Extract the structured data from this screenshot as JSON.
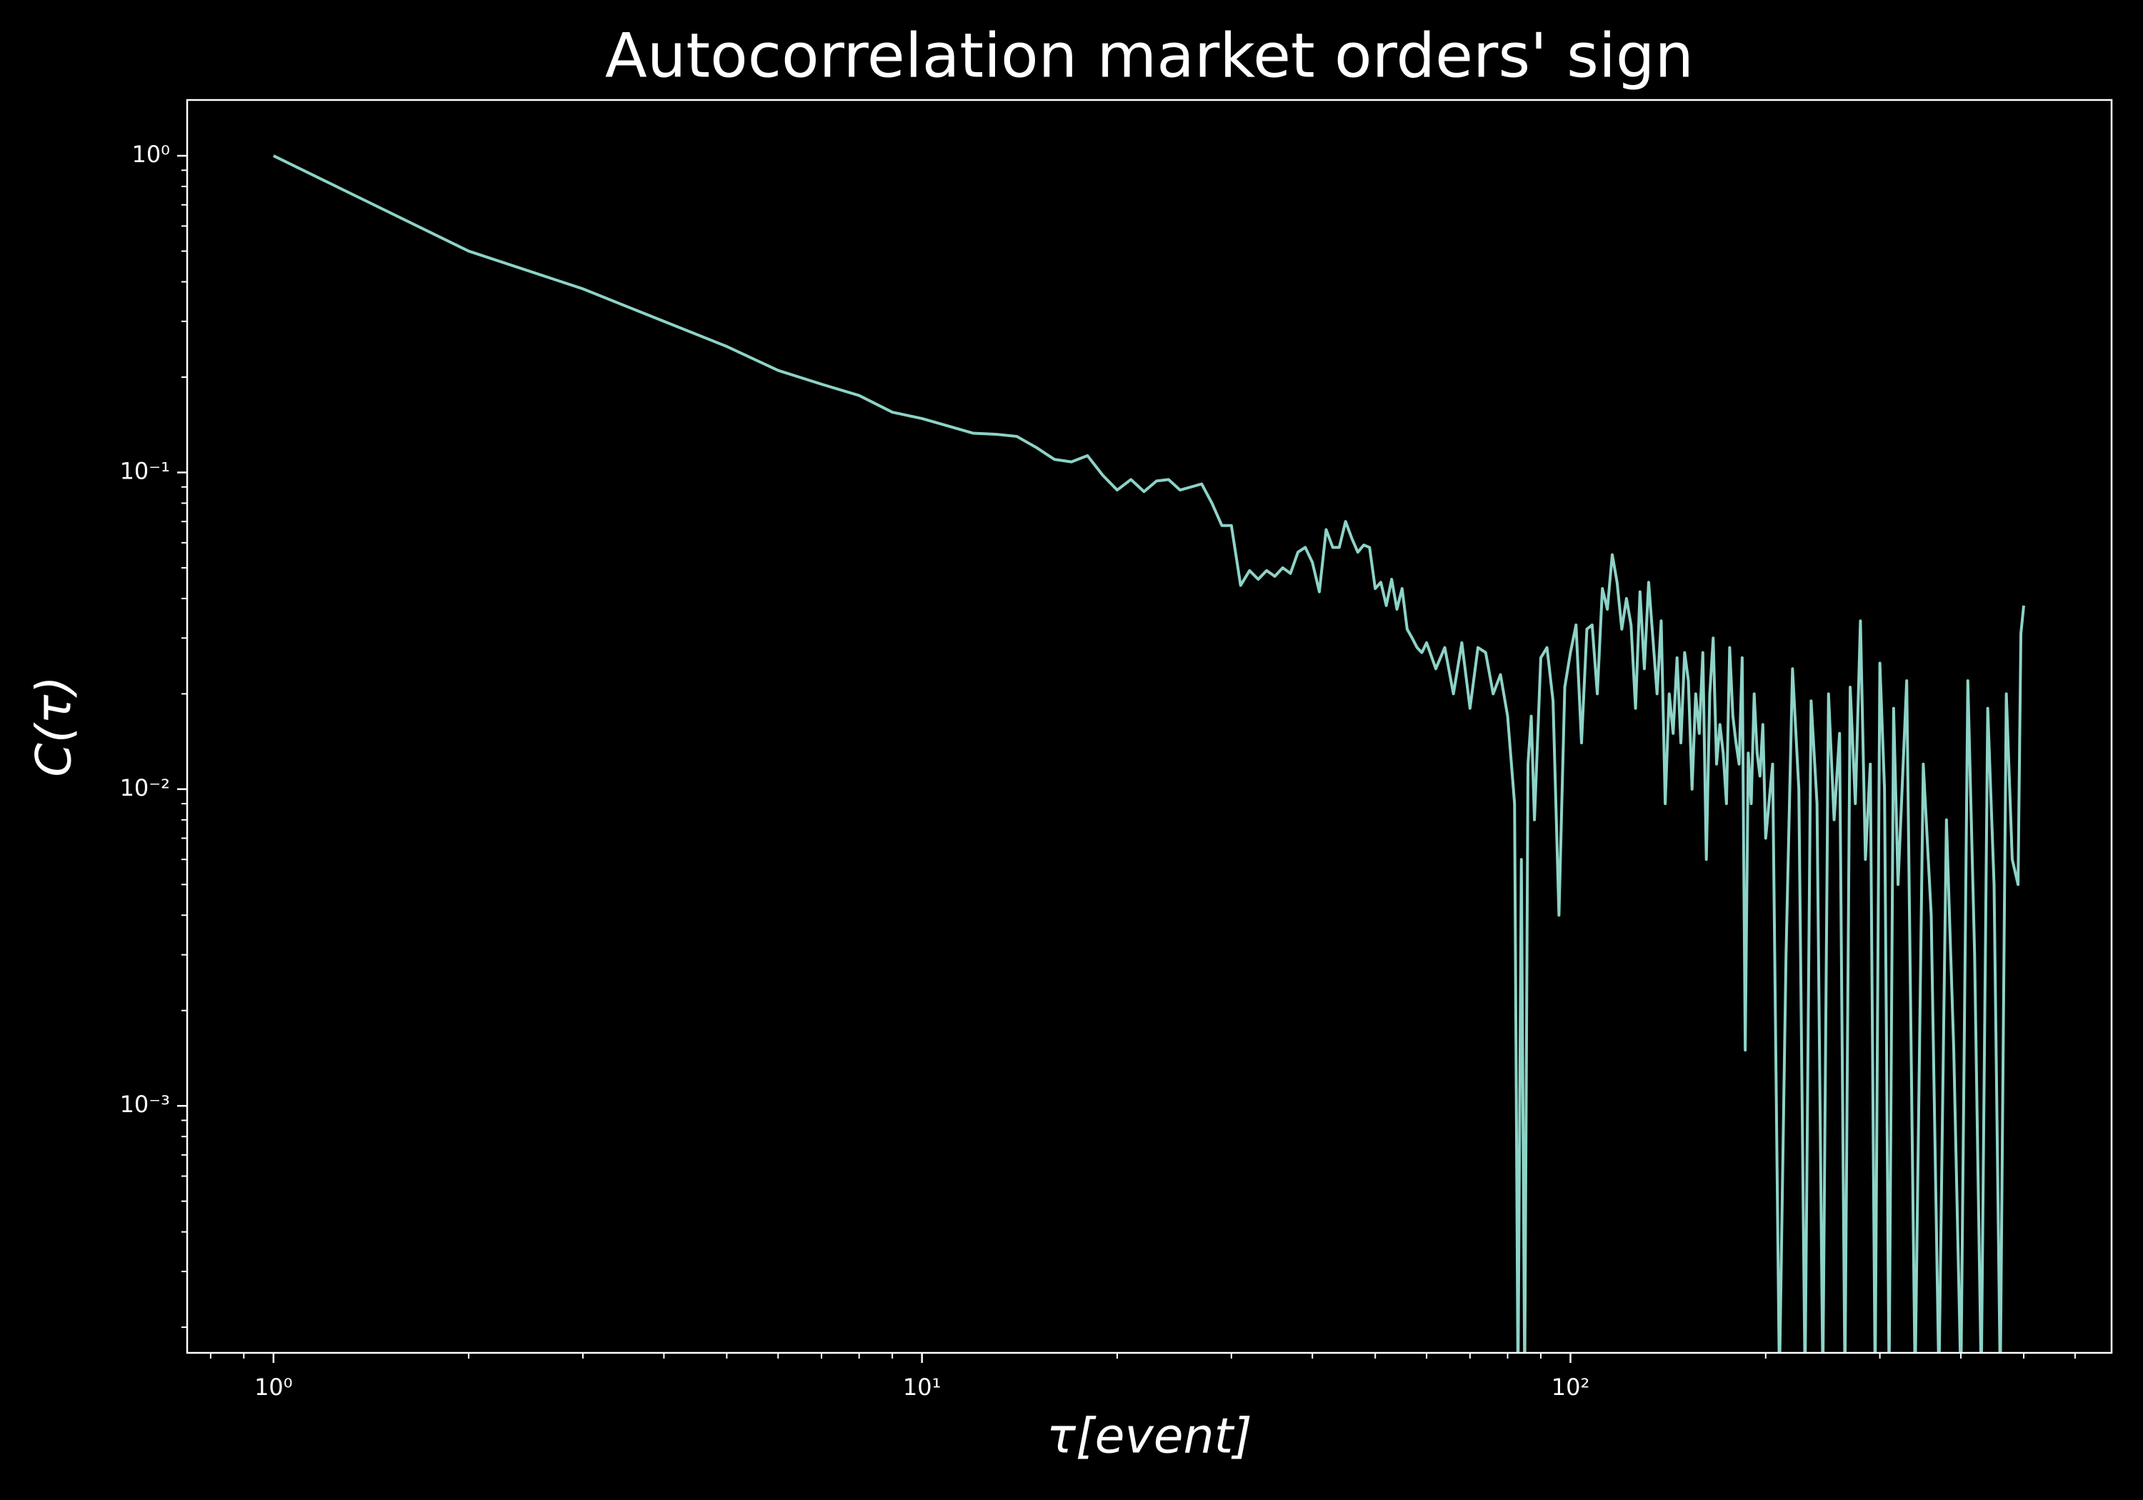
{
  "chart_data": {
    "type": "line",
    "title": "Autocorrelation market orders' sign",
    "xlabel": "τ[event]",
    "ylabel": "C(τ)",
    "xscale": "log",
    "yscale": "log",
    "color": "#8dd3c7",
    "background": "#000000",
    "xlim": [
      0.736,
      683
    ],
    "ylim": [
      0.000166,
      1.5
    ],
    "xticks": [
      {
        "value": 1,
        "label": "10⁰"
      },
      {
        "value": 10,
        "label": "10¹"
      },
      {
        "value": 100,
        "label": "10²"
      }
    ],
    "yticks": [
      {
        "value": 0.001,
        "label": "10⁻³"
      },
      {
        "value": 0.01,
        "label": "10⁻²"
      },
      {
        "value": 0.1,
        "label": "10⁻¹"
      },
      {
        "value": 1,
        "label": "10⁰"
      }
    ],
    "xminorticks": [
      0.8,
      0.9,
      2,
      3,
      4,
      5,
      6,
      7,
      8,
      9,
      20,
      30,
      40,
      50,
      60,
      70,
      80,
      90,
      200,
      300,
      400,
      500,
      600
    ],
    "yminorticks": [
      0.0002,
      0.0003,
      0.0004,
      0.0005,
      0.0006,
      0.0007,
      0.0008,
      0.0009,
      0.002,
      0.003,
      0.004,
      0.005,
      0.006,
      0.007,
      0.008,
      0.009,
      0.02,
      0.03,
      0.04,
      0.05,
      0.06,
      0.07,
      0.08,
      0.09,
      0.2,
      0.3,
      0.4,
      0.5,
      0.6,
      0.7,
      0.8,
      0.9
    ],
    "x": [
      1,
      2,
      3,
      4,
      5,
      6,
      7,
      8,
      9,
      10,
      11,
      12,
      13,
      14,
      15,
      16,
      17,
      18,
      19,
      20,
      21,
      22,
      23,
      24,
      25,
      26,
      27,
      28,
      29,
      30,
      31,
      32,
      33,
      34,
      35,
      36,
      37,
      38,
      39,
      40,
      41,
      42,
      43,
      44,
      45,
      46,
      47,
      48,
      49,
      50,
      51,
      52,
      53,
      54,
      55,
      56,
      57,
      58,
      59,
      60,
      62,
      64,
      66,
      68,
      70,
      72,
      74,
      76,
      78,
      80,
      82,
      83,
      84,
      85,
      86,
      87,
      88,
      90,
      92,
      94,
      96,
      98,
      100,
      102,
      104,
      106,
      108,
      110,
      112,
      114,
      116,
      118,
      120,
      122,
      124,
      126,
      128,
      130,
      132,
      134,
      136,
      138,
      140,
      142,
      144,
      146,
      148,
      150,
      152,
      154,
      156,
      158,
      160,
      162,
      164,
      166,
      168,
      170,
      172,
      174,
      176,
      178,
      180,
      182,
      184,
      186,
      188,
      190,
      192,
      194,
      196,
      198,
      200,
      205,
      210,
      215,
      220,
      225,
      230,
      235,
      240,
      245,
      250,
      255,
      260,
      265,
      270,
      275,
      280,
      285,
      290,
      295,
      300,
      305,
      310,
      315,
      320,
      330,
      340,
      350,
      360,
      370,
      380,
      390,
      400,
      410,
      420,
      430,
      440,
      450,
      460,
      470,
      480,
      490,
      495,
      500
    ],
    "values": [
      1.0,
      0.5,
      0.38,
      0.3,
      0.25,
      0.21,
      0.19,
      0.175,
      0.155,
      0.148,
      0.14,
      0.133,
      0.132,
      0.13,
      0.12,
      0.11,
      0.108,
      0.113,
      0.098,
      0.088,
      0.095,
      0.087,
      0.094,
      0.095,
      0.088,
      0.09,
      0.092,
      0.08,
      0.068,
      0.068,
      0.044,
      0.049,
      0.046,
      0.049,
      0.047,
      0.05,
      0.048,
      0.056,
      0.058,
      0.052,
      0.042,
      0.066,
      0.058,
      0.058,
      0.07,
      0.062,
      0.056,
      0.059,
      0.058,
      0.043,
      0.045,
      0.038,
      0.046,
      0.037,
      0.043,
      0.032,
      0.03,
      0.028,
      0.027,
      0.029,
      0.024,
      0.028,
      0.02,
      0.029,
      0.018,
      0.028,
      0.027,
      0.02,
      0.023,
      0.017,
      0.009,
      -0.001,
      0.006,
      -0.002,
      0.012,
      0.017,
      0.008,
      0.026,
      0.028,
      0.019,
      0.004,
      0.021,
      0.027,
      0.033,
      0.014,
      0.032,
      0.033,
      0.02,
      0.043,
      0.037,
      0.055,
      0.045,
      0.032,
      0.04,
      0.033,
      0.018,
      0.042,
      0.024,
      0.045,
      0.03,
      0.02,
      0.034,
      0.009,
      0.02,
      0.015,
      0.026,
      0.014,
      0.027,
      0.022,
      0.01,
      0.02,
      0.015,
      0.027,
      0.006,
      0.02,
      0.03,
      0.012,
      0.016,
      0.013,
      0.009,
      0.028,
      0.017,
      0.014,
      0.012,
      0.026,
      0.0015,
      0.013,
      0.009,
      0.02,
      0.013,
      0.011,
      0.016,
      0.007,
      0.012,
      -0.001,
      0.003,
      0.024,
      0.01,
      -0.001,
      0.019,
      0.009,
      -0.001,
      0.02,
      0.008,
      0.015,
      -0.001,
      0.021,
      0.009,
      0.034,
      0.006,
      0.012,
      -0.001,
      0.025,
      0.01,
      -0.001,
      0.018,
      0.005,
      0.022,
      -0.001,
      0.012,
      0.004,
      -0.001,
      0.008,
      0.0015,
      -0.001,
      0.022,
      0.003,
      -0.001,
      0.018,
      0.005,
      -0.001,
      0.02,
      0.006,
      0.005,
      0.031,
      0.038
    ]
  }
}
